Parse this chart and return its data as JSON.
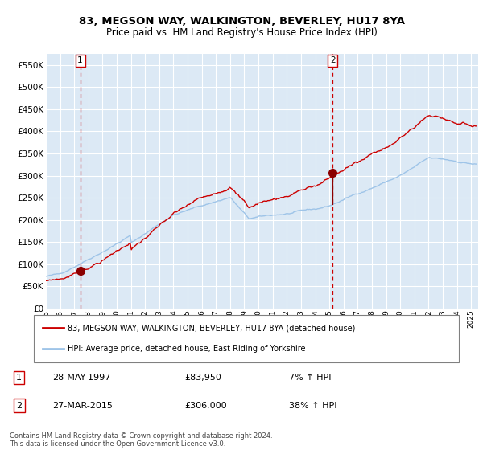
{
  "title": "83, MEGSON WAY, WALKINGTON, BEVERLEY, HU17 8YA",
  "subtitle": "Price paid vs. HM Land Registry's House Price Index (HPI)",
  "legend_line1": "83, MEGSON WAY, WALKINGTON, BEVERLEY, HU17 8YA (detached house)",
  "legend_line2": "HPI: Average price, detached house, East Riding of Yorkshire",
  "sale1_date": "28-MAY-1997",
  "sale1_price": 83950,
  "sale1_label": "7% ↑ HPI",
  "sale2_date": "27-MAR-2015",
  "sale2_price": 306000,
  "sale2_label": "38% ↑ HPI",
  "footnote": "Contains HM Land Registry data © Crown copyright and database right 2024.\nThis data is licensed under the Open Government Licence v3.0.",
  "hpi_color": "#9ec4e8",
  "price_color": "#cc0000",
  "bg_color": "#ffffff",
  "plot_bg_color": "#dce9f5",
  "grid_color": "#ffffff",
  "sale_marker_color": "#8b0000",
  "dashed_line_color": "#cc0000",
  "ylim": [
    0,
    575000
  ],
  "yticks": [
    0,
    50000,
    100000,
    150000,
    200000,
    250000,
    300000,
    350000,
    400000,
    450000,
    500000,
    550000
  ],
  "sale1_x": 1997.42,
  "sale2_x": 2015.24,
  "xmin": 1995.0,
  "xmax": 2025.5
}
